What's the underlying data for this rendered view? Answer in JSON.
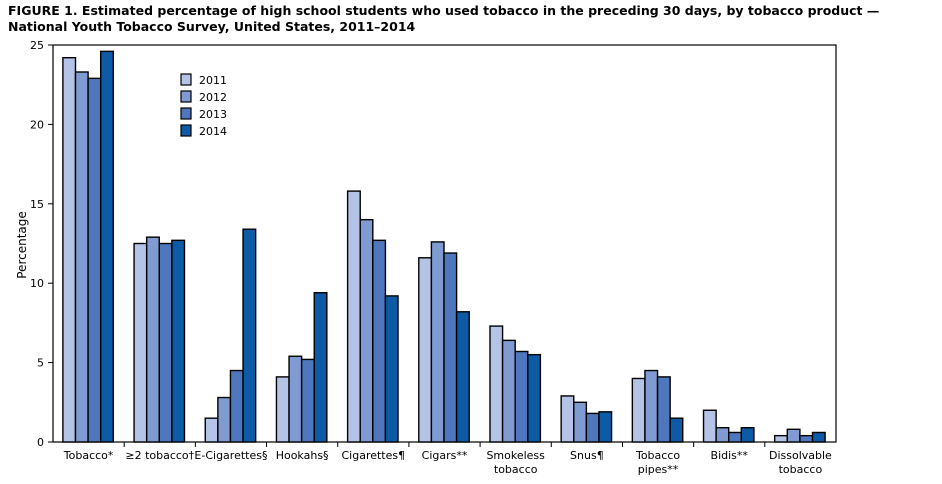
{
  "figure": {
    "title": "FIGURE 1. Estimated percentage of high school students who used tobacco in the preceding 30 days, by tobacco product — National Youth Tobacco Survey, United States, 2011–2014"
  },
  "chart_data": {
    "type": "bar",
    "title": "FIGURE 1. Estimated percentage of high school students who used tobacco in the preceding 30 days, by tobacco product — National Youth Tobacco Survey, United States, 2011–2014",
    "xlabel": "",
    "ylabel": "Percentage",
    "ylim": [
      0,
      25
    ],
    "yticks": [
      0,
      5,
      10,
      15,
      20,
      25
    ],
    "grid": false,
    "legend_position": "top-left",
    "categories": [
      [
        "Tobacco*"
      ],
      [
        "≥2 tobacco†"
      ],
      [
        "E-Cigarettes§"
      ],
      [
        "Hookahs§"
      ],
      [
        "Cigarettes¶"
      ],
      [
        "Cigars**"
      ],
      [
        "Smokeless",
        "tobacco"
      ],
      [
        "Snus¶"
      ],
      [
        "Tobacco",
        "pipes**"
      ],
      [
        "Bidis**"
      ],
      [
        "Dissolvable",
        "tobacco"
      ]
    ],
    "series": [
      {
        "name": "2011",
        "color": "#b4c3e6",
        "values": [
          24.2,
          12.5,
          1.5,
          4.1,
          15.8,
          11.6,
          7.3,
          2.9,
          4.0,
          2.0,
          0.4
        ]
      },
      {
        "name": "2012",
        "color": "#7f9bd1",
        "values": [
          23.3,
          12.9,
          2.8,
          5.4,
          14.0,
          12.6,
          6.4,
          2.5,
          4.5,
          0.9,
          0.8
        ]
      },
      {
        "name": "2013",
        "color": "#4f77bd",
        "values": [
          22.9,
          12.5,
          4.5,
          5.2,
          12.7,
          11.9,
          5.7,
          1.8,
          4.1,
          0.6,
          0.4
        ]
      },
      {
        "name": "2014",
        "color": "#0d5aa6",
        "values": [
          24.6,
          12.7,
          13.4,
          9.4,
          9.2,
          8.2,
          5.5,
          1.9,
          1.5,
          0.9,
          0.6
        ]
      }
    ]
  }
}
